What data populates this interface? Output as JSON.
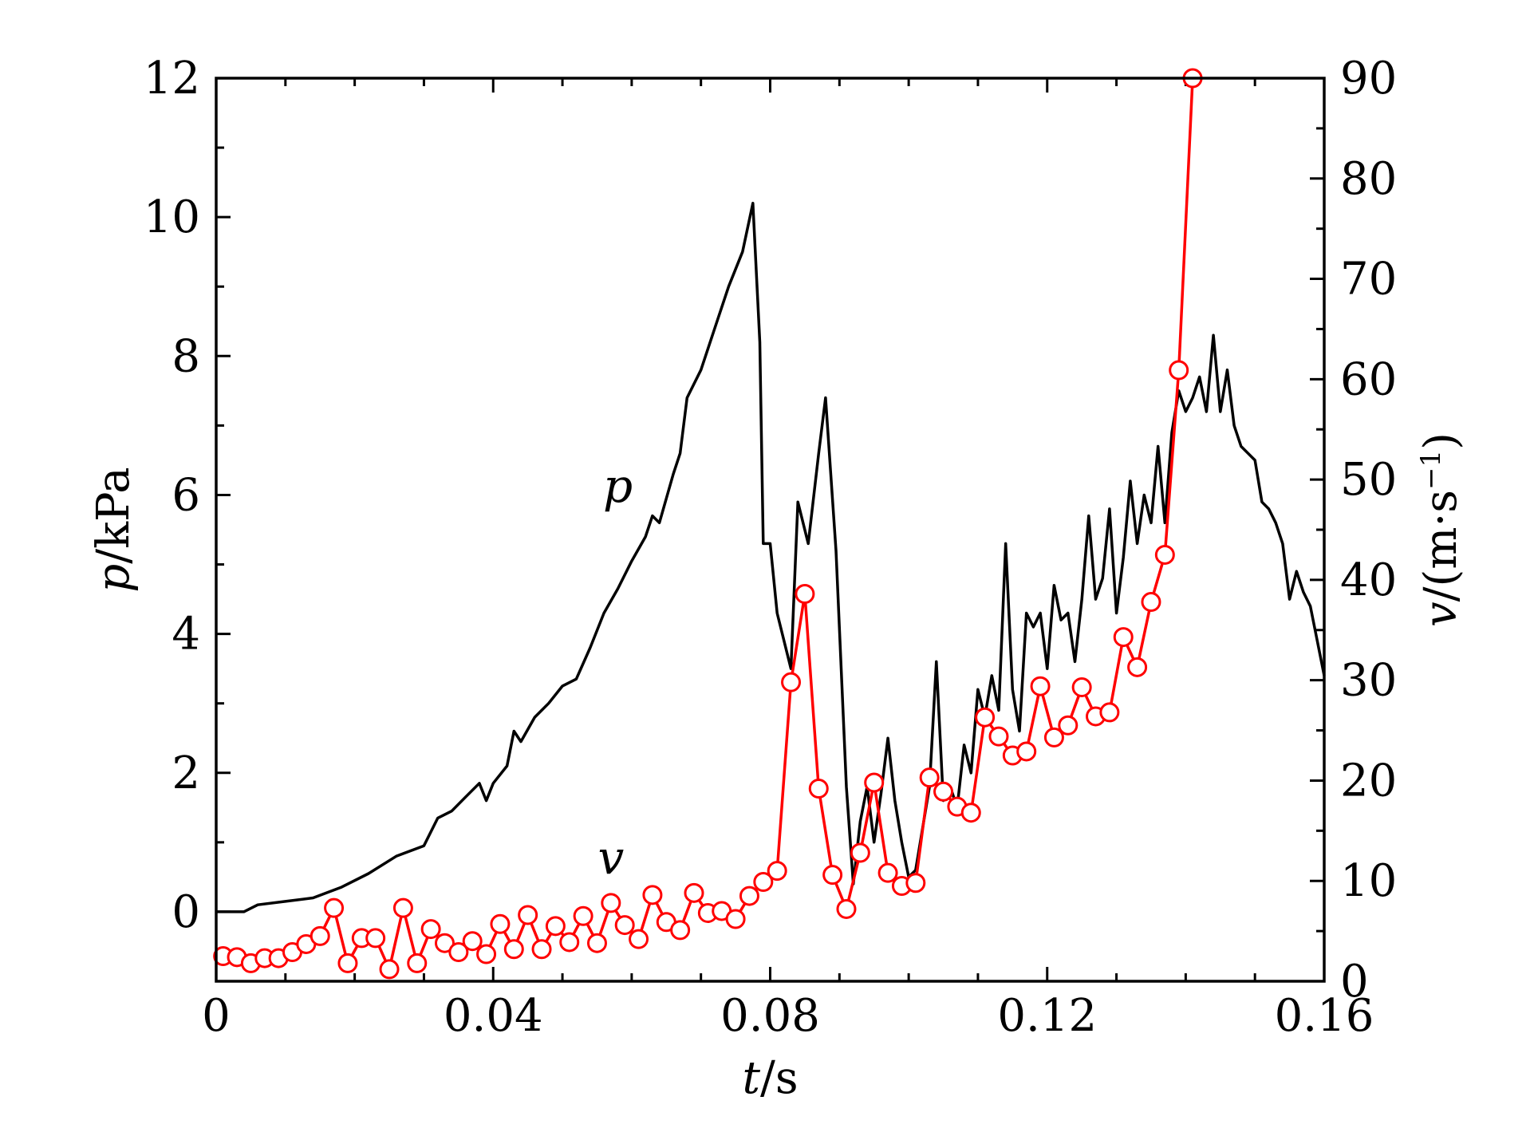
{
  "chart_data": {
    "type": "line",
    "xlabel": {
      "italic": "t",
      "rest": "/s"
    },
    "ylabel_left": {
      "italic": "p",
      "rest": "/kPa"
    },
    "ylabel_right": {
      "italic": "v",
      "rest": "/(m·s",
      "sup": "−1",
      "close": ")"
    },
    "xlim": [
      0,
      0.16
    ],
    "ylim_left": [
      -1,
      12
    ],
    "ylim_right": [
      0,
      90
    ],
    "x_ticks": [
      0,
      0.04,
      0.08,
      0.12,
      0.16
    ],
    "x_tick_labels": [
      "0",
      "0.04",
      "0.08",
      "0.12",
      "0.16"
    ],
    "y_left_ticks": [
      0,
      2,
      4,
      6,
      8,
      10,
      12
    ],
    "y_left_tick_labels": [
      "0",
      "2",
      "4",
      "6",
      "8",
      "10",
      "12"
    ],
    "y_right_ticks": [
      0,
      10,
      20,
      30,
      40,
      50,
      60,
      70,
      80,
      90
    ],
    "y_right_tick_labels": [
      "0",
      "10",
      "20",
      "30",
      "40",
      "50",
      "60",
      "70",
      "80",
      "90"
    ],
    "series": [
      {
        "name": "p",
        "axis": "left",
        "color": "#000000",
        "marker": "none",
        "x": [
          0,
          0.004,
          0.006,
          0.01,
          0.014,
          0.018,
          0.022,
          0.026,
          0.03,
          0.032,
          0.034,
          0.036,
          0.038,
          0.039,
          0.04,
          0.042,
          0.043,
          0.044,
          0.046,
          0.048,
          0.05,
          0.052,
          0.054,
          0.056,
          0.058,
          0.06,
          0.062,
          0.063,
          0.064,
          0.066,
          0.067,
          0.068,
          0.07,
          0.072,
          0.074,
          0.076,
          0.0775,
          0.0785,
          0.079,
          0.08,
          0.081,
          0.083,
          0.084,
          0.0855,
          0.087,
          0.088,
          0.0895,
          0.091,
          0.092,
          0.093,
          0.094,
          0.095,
          0.096,
          0.097,
          0.098,
          0.099,
          0.1,
          0.101,
          0.103,
          0.104,
          0.105,
          0.106,
          0.107,
          0.108,
          0.109,
          0.11,
          0.111,
          0.112,
          0.113,
          0.114,
          0.115,
          0.116,
          0.117,
          0.118,
          0.119,
          0.12,
          0.121,
          0.122,
          0.123,
          0.124,
          0.125,
          0.126,
          0.127,
          0.128,
          0.129,
          0.13,
          0.131,
          0.132,
          0.133,
          0.134,
          0.135,
          0.136,
          0.137,
          0.138,
          0.139,
          0.14,
          0.141,
          0.142,
          0.143,
          0.144,
          0.145,
          0.146,
          0.147,
          0.148,
          0.149,
          0.15,
          0.151,
          0.152,
          0.153,
          0.154,
          0.155,
          0.156,
          0.157,
          0.158,
          0.159,
          0.16
        ],
        "y": [
          0.0,
          0.0,
          0.1,
          0.15,
          0.2,
          0.35,
          0.55,
          0.8,
          0.95,
          1.35,
          1.45,
          1.65,
          1.85,
          1.6,
          1.85,
          2.1,
          2.6,
          2.45,
          2.8,
          3.0,
          3.25,
          3.35,
          3.8,
          4.3,
          4.65,
          5.05,
          5.4,
          5.7,
          5.6,
          6.3,
          6.6,
          7.4,
          7.8,
          8.4,
          9.0,
          9.5,
          10.2,
          8.2,
          5.3,
          5.3,
          4.3,
          3.5,
          5.9,
          5.3,
          6.6,
          7.4,
          5.2,
          1.8,
          0.4,
          1.3,
          1.8,
          1.0,
          1.7,
          2.5,
          1.6,
          1.0,
          0.5,
          0.6,
          1.8,
          3.6,
          1.6,
          1.8,
          1.5,
          2.4,
          2.0,
          3.2,
          2.8,
          3.4,
          2.9,
          5.3,
          3.2,
          2.6,
          4.3,
          4.1,
          4.3,
          3.5,
          4.7,
          4.2,
          4.3,
          3.6,
          4.5,
          5.7,
          4.5,
          4.8,
          5.8,
          4.3,
          5.1,
          6.2,
          5.3,
          6.0,
          5.6,
          6.7,
          5.6,
          6.9,
          7.5,
          7.2,
          7.4,
          7.7,
          7.2,
          8.3,
          7.2,
          7.8,
          7.0,
          6.7,
          6.6,
          6.5,
          5.9,
          5.8,
          5.6,
          5.3,
          4.5,
          4.9,
          4.6,
          4.4,
          3.9,
          3.4
        ]
      },
      {
        "name": "v",
        "axis": "right",
        "color": "#ff0000",
        "marker": "open-circle",
        "x": [
          0.001,
          0.003,
          0.005,
          0.007,
          0.009,
          0.011,
          0.013,
          0.015,
          0.017,
          0.019,
          0.021,
          0.023,
          0.025,
          0.027,
          0.029,
          0.031,
          0.033,
          0.035,
          0.037,
          0.039,
          0.041,
          0.043,
          0.045,
          0.047,
          0.049,
          0.051,
          0.053,
          0.055,
          0.057,
          0.059,
          0.061,
          0.063,
          0.065,
          0.067,
          0.069,
          0.071,
          0.073,
          0.075,
          0.077,
          0.079,
          0.081,
          0.083,
          0.085,
          0.087,
          0.089,
          0.091,
          0.093,
          0.095,
          0.097,
          0.099,
          0.101,
          0.103,
          0.105,
          0.107,
          0.109,
          0.111,
          0.113,
          0.115,
          0.117,
          0.119,
          0.121,
          0.123,
          0.125,
          0.127,
          0.129,
          0.131,
          0.133,
          0.135,
          0.137,
          0.139,
          0.141
        ],
        "y": [
          2.5,
          2.4,
          1.8,
          2.3,
          2.3,
          2.9,
          3.7,
          4.5,
          7.3,
          1.8,
          4.3,
          4.3,
          1.2,
          7.3,
          1.8,
          5.2,
          3.8,
          2.9,
          4.0,
          2.7,
          5.7,
          3.2,
          6.6,
          3.2,
          5.5,
          3.9,
          6.5,
          3.8,
          7.8,
          5.6,
          4.2,
          8.6,
          5.9,
          5.1,
          8.8,
          6.8,
          7.0,
          6.2,
          8.5,
          9.9,
          11.0,
          29.8,
          38.6,
          19.2,
          10.6,
          7.2,
          12.8,
          19.8,
          10.8,
          9.5,
          9.8,
          20.3,
          18.9,
          17.4,
          16.8,
          26.3,
          24.4,
          22.5,
          22.9,
          29.4,
          24.3,
          25.5,
          29.3,
          26.4,
          26.8,
          34.3,
          31.3,
          37.8,
          42.5,
          60.9,
          90.0
        ]
      }
    ],
    "annotations": [
      {
        "text": "p",
        "x": 0.058,
        "y_left": 5.9
      },
      {
        "text": "v",
        "x": 0.057,
        "y_left": 0.55
      }
    ]
  }
}
